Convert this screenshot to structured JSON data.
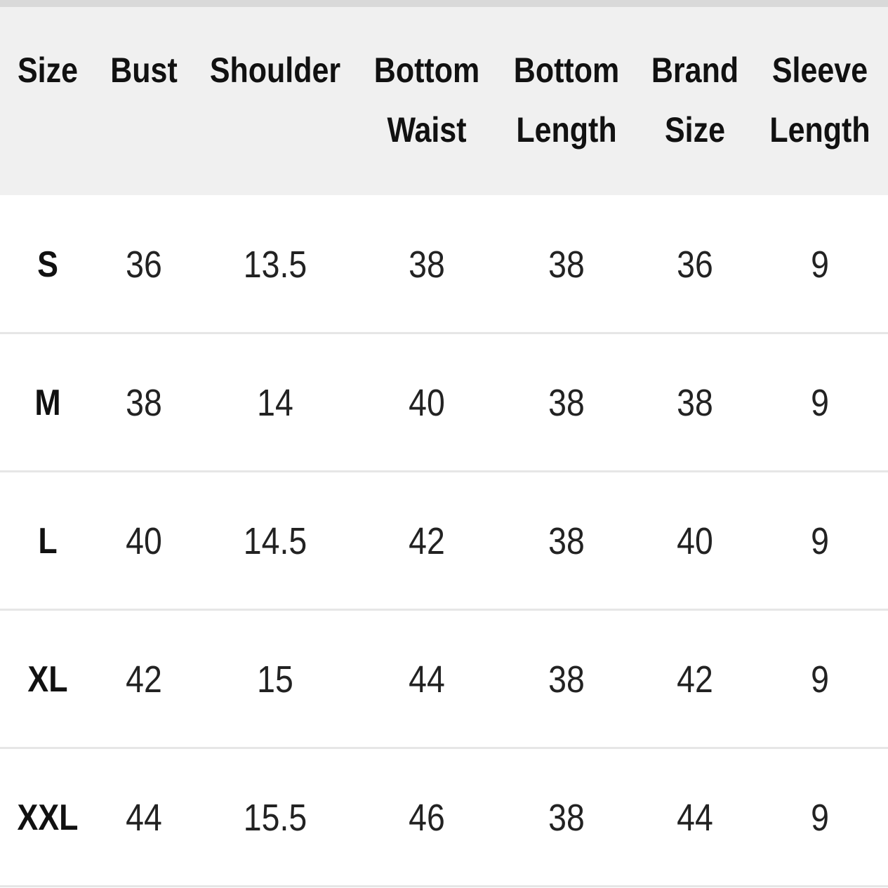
{
  "table": {
    "headers": [
      [
        "Size"
      ],
      [
        "Bust"
      ],
      [
        "Shoulder"
      ],
      [
        "Bottom",
        "Waist"
      ],
      [
        "Bottom",
        "Length"
      ],
      [
        "Brand",
        "Size"
      ],
      [
        "Sleeve",
        "Length"
      ]
    ],
    "rows": [
      [
        "S",
        "36",
        "13.5",
        "38",
        "38",
        "36",
        "9"
      ],
      [
        "M",
        "38",
        "14",
        "40",
        "38",
        "38",
        "9"
      ],
      [
        "L",
        "40",
        "14.5",
        "42",
        "38",
        "40",
        "9"
      ],
      [
        "XL",
        "42",
        "15",
        "44",
        "38",
        "42",
        "9"
      ],
      [
        "XXL",
        "44",
        "15.5",
        "46",
        "38",
        "44",
        "9"
      ]
    ]
  }
}
